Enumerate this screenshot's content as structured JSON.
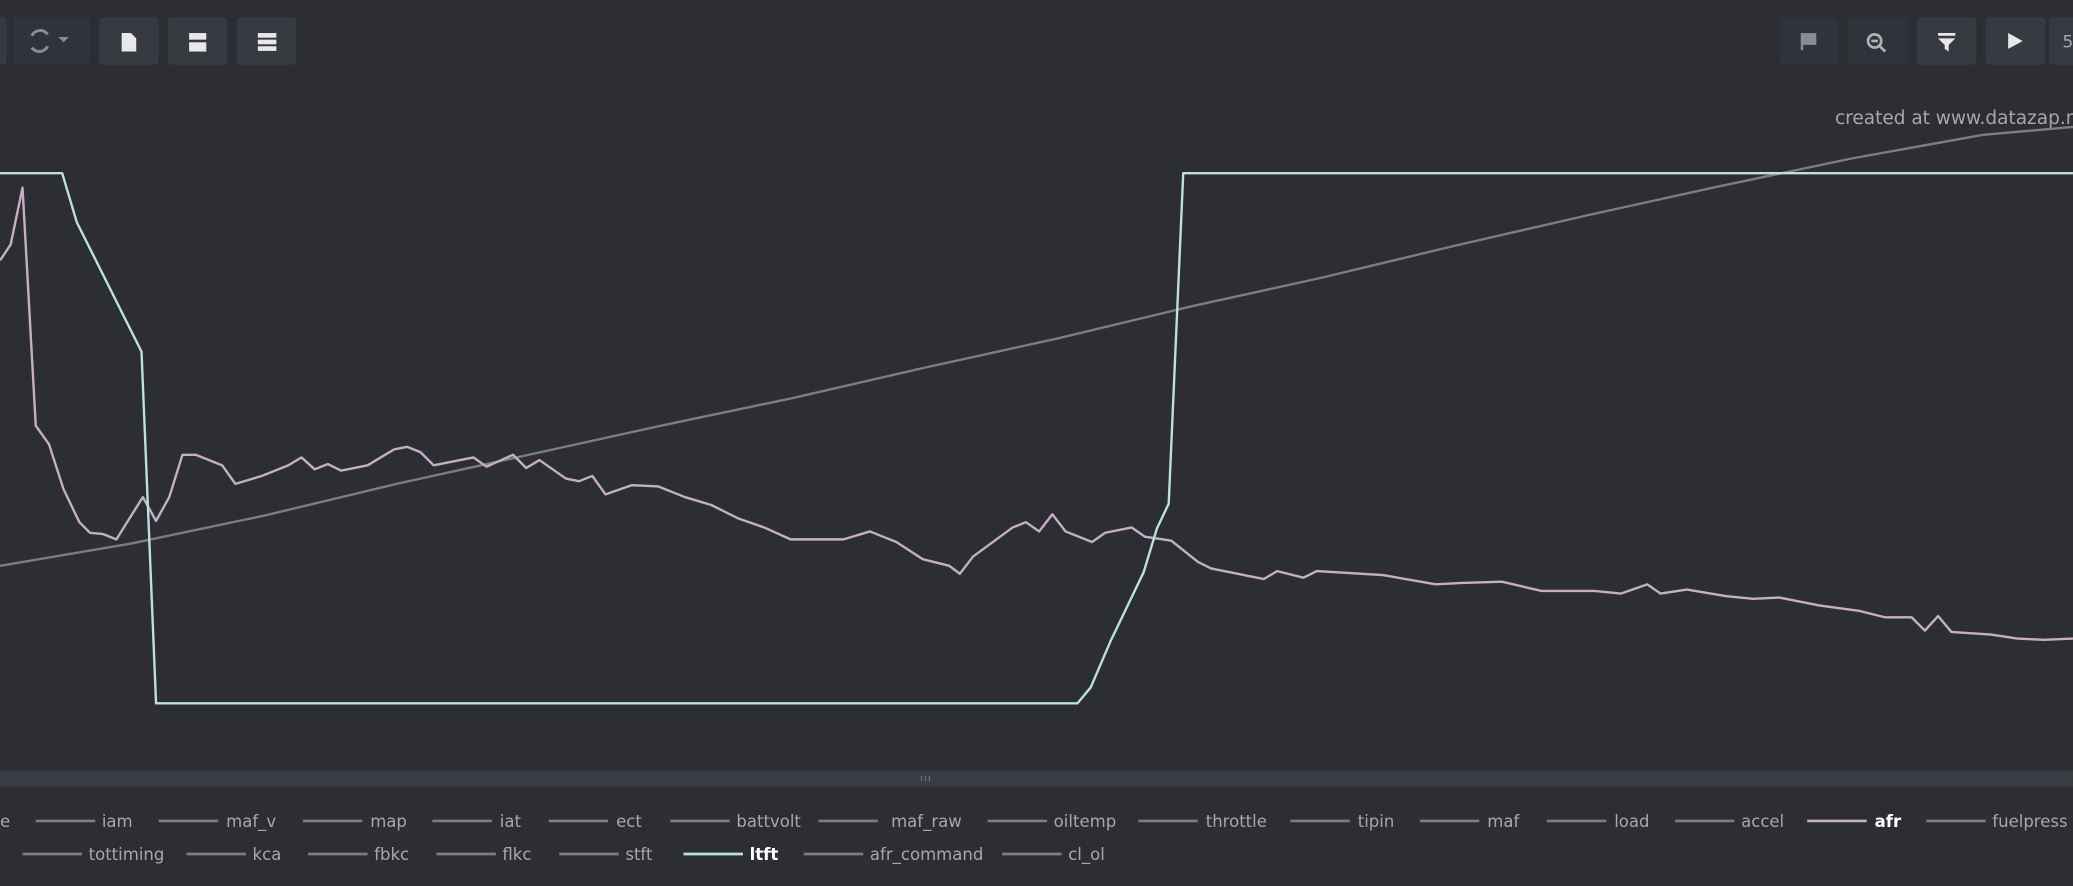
{
  "toolbar": {
    "page_field": "5"
  },
  "watermark": "created at www.datazap.me",
  "chart_data": {
    "type": "line",
    "xlim": [
      0,
      1568
    ],
    "ylim": [
      0,
      520
    ],
    "series": [
      {
        "color": "#7b7d82",
        "x": [
          0,
          100,
          200,
          300,
          400,
          500,
          600,
          700,
          800,
          900,
          1000,
          1100,
          1200,
          1300,
          1400,
          1500,
          1568
        ],
        "values": [
          152,
          169,
          190,
          214,
          236,
          258,
          279,
          302,
          324,
          348,
          370,
          394,
          417,
          439,
          460,
          478,
          484
        ]
      },
      {
        "name": "afr",
        "color": "#c7aec3",
        "x": [
          0,
          8,
          17,
          27,
          37,
          48,
          60,
          68,
          78,
          88,
          98,
          108,
          118,
          128,
          138,
          148,
          168,
          178,
          198,
          218,
          228,
          238,
          248,
          258,
          278,
          298,
          308,
          318,
          328,
          348,
          358,
          368,
          388,
          398,
          408,
          428,
          438,
          448,
          458,
          478,
          498,
          518,
          538,
          558,
          578,
          598,
          618,
          638,
          658,
          678,
          698,
          718,
          726,
          736,
          766,
          776,
          786,
          796,
          806,
          826,
          836,
          856,
          866,
          886,
          906,
          916,
          956,
          966,
          986,
          996,
          1046,
          1086,
          1106,
          1136,
          1166,
          1206,
          1226,
          1246,
          1256,
          1276,
          1306,
          1326,
          1346,
          1376,
          1406,
          1426,
          1446,
          1456,
          1466,
          1476,
          1506,
          1526,
          1546,
          1568
        ],
        "values": [
          383,
          395,
          438,
          258,
          244,
          210,
          185,
          177,
          176,
          172,
          188,
          204,
          186,
          204,
          236,
          236,
          228,
          214,
          220,
          228,
          234,
          225,
          229,
          224,
          228,
          240,
          242,
          238,
          228,
          232,
          234,
          227,
          236,
          226,
          232,
          218,
          216,
          220,
          206,
          213,
          212,
          204,
          198,
          188,
          181,
          172,
          172,
          172,
          178,
          170,
          157,
          152,
          146,
          159,
          181,
          185,
          178,
          191,
          178,
          170,
          177,
          181,
          174,
          171,
          155,
          150,
          142,
          148,
          143,
          148,
          145,
          138,
          139,
          140,
          133,
          133,
          131,
          138,
          131,
          134,
          129,
          127,
          128,
          122,
          118,
          113,
          113,
          103,
          114,
          102,
          100,
          97,
          96,
          97
        ]
      },
      {
        "name": "ltft",
        "color": "#bde0e0",
        "x": [
          0,
          47,
          58,
          107,
          118,
          815,
          825,
          840,
          865,
          875,
          884,
          895,
          1568
        ],
        "values": [
          449,
          449,
          412,
          314,
          48,
          48,
          60,
          95,
          147,
          180,
          199,
          449,
          449
        ]
      }
    ]
  },
  "legend": [
    [
      "e",
      "iam",
      "maf_v",
      "map",
      "iat",
      "ect",
      "battvolt",
      "maf_raw",
      "oiltemp",
      "throttle",
      "tipin",
      "maf",
      "load",
      "accel",
      "afr",
      "fuelpress"
    ],
    [
      "tottiming",
      "kca",
      "fbkc",
      "flkc",
      "stft",
      "ltft",
      "afr_command",
      "cl_ol"
    ]
  ]
}
